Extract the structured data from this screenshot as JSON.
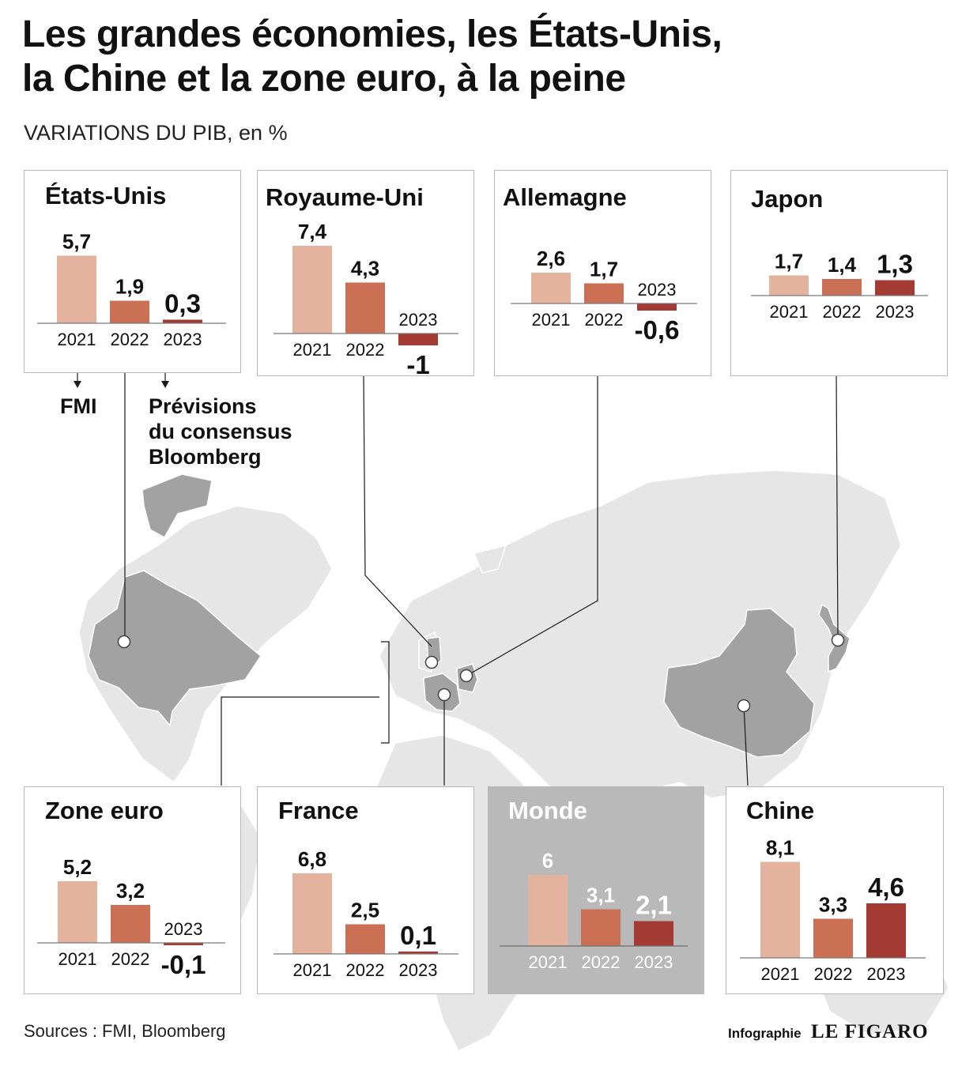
{
  "header": {
    "title_line1": "Les grandes économies, les États-Unis,",
    "title_line2": "la Chine et la zone euro, à la peine",
    "subtitle": "VARIATIONS DU PIB, en %"
  },
  "notes": {
    "fmi": "FMI",
    "consensus_line1": "Prévisions",
    "consensus_line2": "du consensus",
    "consensus_line3": "Bloomberg"
  },
  "footer": {
    "source": "Sources : FMI, Bloomberg",
    "credit_small": "Infographie",
    "credit_brand": "LE FIGARO"
  },
  "colors": {
    "y2021": "#e3b39e",
    "y2022": "#cb7055",
    "y2023": "#a33a33",
    "map_land": "#e6e6e6",
    "map_highlight": "#a2a2a2",
    "world_panel": "#b9b9b9"
  },
  "chart_data": [
    {
      "type": "bar",
      "title": "États-Unis",
      "categories": [
        "2021",
        "2022",
        "2023"
      ],
      "values": [
        5.7,
        1.9,
        0.3
      ],
      "labels": [
        "5,7",
        "1,9",
        "0,3"
      ]
    },
    {
      "type": "bar",
      "title": "Royaume-Uni",
      "categories": [
        "2021",
        "2022",
        "2023"
      ],
      "values": [
        7.4,
        4.3,
        -1
      ],
      "labels": [
        "7,4",
        "4,3",
        "-1"
      ]
    },
    {
      "type": "bar",
      "title": "Allemagne",
      "categories": [
        "2021",
        "2022",
        "2023"
      ],
      "values": [
        2.6,
        1.7,
        -0.6
      ],
      "labels": [
        "2,6",
        "1,7",
        "-0,6"
      ]
    },
    {
      "type": "bar",
      "title": "Japon",
      "categories": [
        "2021",
        "2022",
        "2023"
      ],
      "values": [
        1.7,
        1.4,
        1.3
      ],
      "labels": [
        "1,7",
        "1,4",
        "1,3"
      ]
    },
    {
      "type": "bar",
      "title": "Zone euro",
      "categories": [
        "2021",
        "2022",
        "2023"
      ],
      "values": [
        5.2,
        3.2,
        -0.1
      ],
      "labels": [
        "5,2",
        "3,2",
        "-0,1"
      ]
    },
    {
      "type": "bar",
      "title": "France",
      "categories": [
        "2021",
        "2022",
        "2023"
      ],
      "values": [
        6.8,
        2.5,
        0.1
      ],
      "labels": [
        "6,8",
        "2,5",
        "0,1"
      ]
    },
    {
      "type": "bar",
      "title": "Monde",
      "categories": [
        "2021",
        "2022",
        "2023"
      ],
      "values": [
        6,
        3.1,
        2.1
      ],
      "labels": [
        "6",
        "3,1",
        "2,1"
      ]
    },
    {
      "type": "bar",
      "title": "Chine",
      "categories": [
        "2021",
        "2022",
        "2023"
      ],
      "values": [
        8.1,
        3.3,
        4.6
      ],
      "labels": [
        "8,1",
        "3,3",
        "4,6"
      ]
    }
  ]
}
